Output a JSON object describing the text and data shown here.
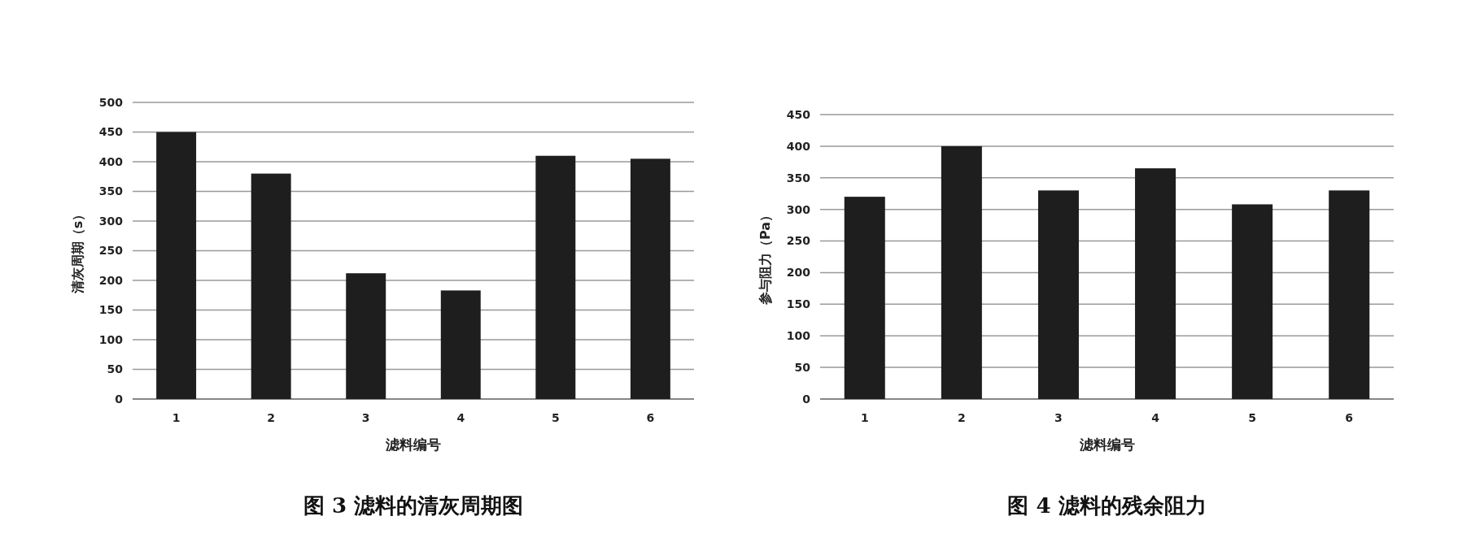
{
  "chart_data": [
    {
      "type": "bar",
      "title": "图 3  滤料的清灰周期图",
      "xlabel": "滤料编号",
      "ylabel": "清灰周期（s）",
      "categories": [
        "1",
        "2",
        "3",
        "4",
        "5",
        "6"
      ],
      "values": [
        450,
        380,
        212,
        183,
        410,
        405
      ],
      "color": "#1e1e1e",
      "ylim": [
        0,
        500
      ],
      "yticks": [
        0,
        50,
        100,
        150,
        200,
        250,
        300,
        350,
        400,
        450,
        500
      ],
      "grid": "y"
    },
    {
      "type": "bar",
      "title": "图 4  滤料的残余阻力",
      "xlabel": "滤料编号",
      "ylabel": "参与阻力（Pa）",
      "categories": [
        "1",
        "2",
        "3",
        "4",
        "5",
        "6"
      ],
      "values": [
        320,
        400,
        330,
        365,
        308,
        330
      ],
      "color": "#1e1e1e",
      "ylim": [
        0,
        450
      ],
      "yticks": [
        0,
        50,
        100,
        150,
        200,
        250,
        300,
        350,
        400,
        450
      ],
      "grid": "y"
    }
  ]
}
